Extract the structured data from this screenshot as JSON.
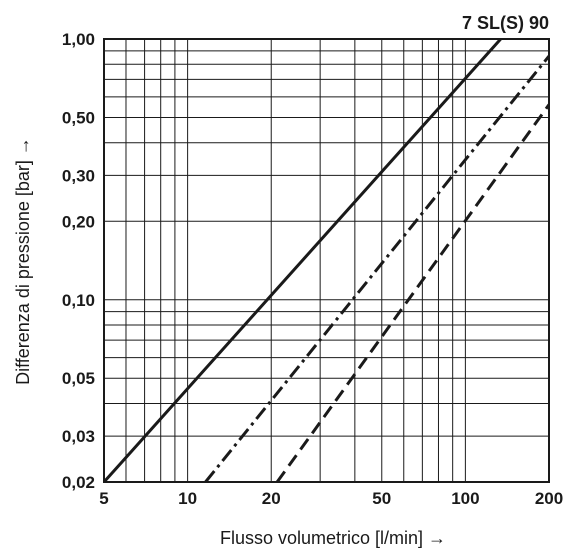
{
  "chart_data": {
    "type": "line",
    "title": "7 SL(S) 90",
    "xlabel": "Flusso volumetrico [l/min] →",
    "ylabel": "Differenza di pressione [bar] →",
    "x_scale": "log",
    "y_scale": "log",
    "xlim": [
      5,
      200
    ],
    "ylim": [
      0.02,
      1.0
    ],
    "x_ticks": [
      5,
      10,
      20,
      50,
      100,
      200
    ],
    "x_tick_labels": [
      "5",
      "10",
      "20",
      "50",
      "100",
      "200"
    ],
    "y_ticks": [
      0.02,
      0.03,
      0.05,
      0.1,
      0.2,
      0.3,
      0.5,
      1.0
    ],
    "y_tick_labels": [
      "0,02",
      "0,03",
      "0,05",
      "0,10",
      "0,20",
      "0,30",
      "0,50",
      "1,00"
    ],
    "x_gridlines": [
      5,
      6,
      7,
      8,
      9,
      10,
      20,
      30,
      40,
      50,
      60,
      70,
      80,
      90,
      100,
      200
    ],
    "y_gridlines": [
      0.02,
      0.03,
      0.04,
      0.05,
      0.06,
      0.07,
      0.08,
      0.09,
      0.1,
      0.2,
      0.3,
      0.4,
      0.5,
      0.6,
      0.7,
      0.8,
      0.9,
      1.0
    ],
    "grid": true,
    "series": [
      {
        "style": "solid",
        "points": [
          [
            5,
            0.02
          ],
          [
            134,
            1.0
          ]
        ]
      },
      {
        "style": "dashdot",
        "points": [
          [
            11.6,
            0.02
          ],
          [
            200,
            0.86
          ]
        ]
      },
      {
        "style": "dashed",
        "points": [
          [
            21,
            0.02
          ],
          [
            200,
            0.56
          ]
        ]
      }
    ]
  }
}
